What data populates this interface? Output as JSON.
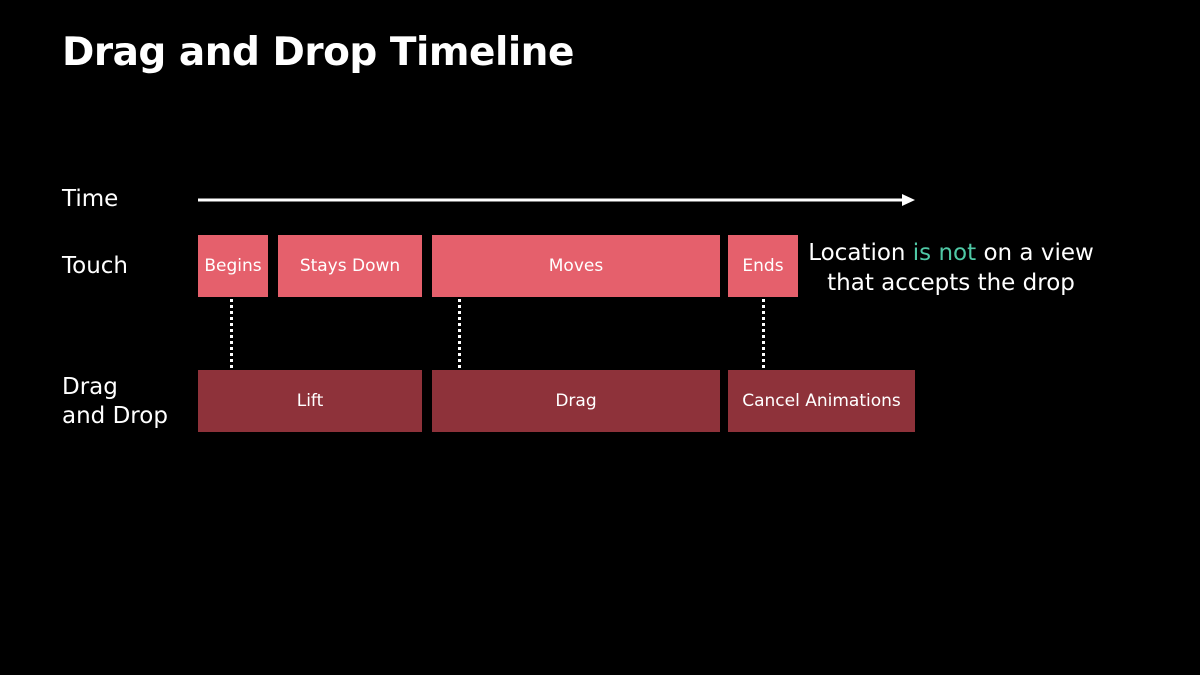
{
  "title": "Drag and Drop Timeline",
  "labels": {
    "time": "Time",
    "touch": "Touch",
    "dnd_line1": "Drag",
    "dnd_line2": "and Drop"
  },
  "touch_events": [
    {
      "label": "Begins"
    },
    {
      "label": "Stays Down"
    },
    {
      "label": "Moves"
    },
    {
      "label": "Ends"
    }
  ],
  "dnd_phases": [
    {
      "label": "Lift"
    },
    {
      "label": "Drag"
    },
    {
      "label": "Cancel Animations"
    }
  ],
  "note": {
    "prefix": "Location ",
    "highlight": "is not",
    "suffix": " on a view that accepts the drop"
  },
  "colors": {
    "background": "#000000",
    "touch_box": "#E5606C",
    "dnd_box": "#8E323A",
    "highlight": "#4FC9A6",
    "text": "#FFFFFF"
  }
}
